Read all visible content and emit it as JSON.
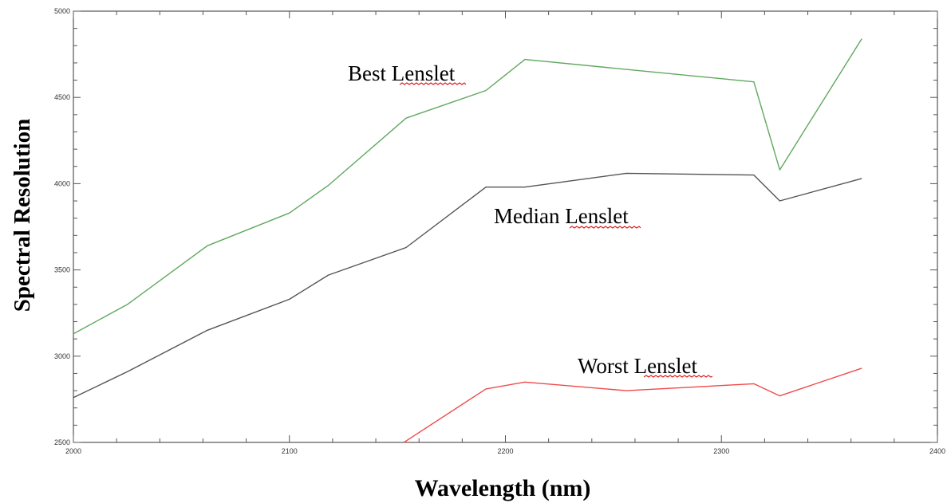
{
  "chart_data": {
    "type": "line",
    "xlabel": "Wavelength (nm)",
    "ylabel": "Spectral Resolution",
    "xlim": [
      2000,
      2400
    ],
    "ylim": [
      2500,
      5000
    ],
    "x_ticks": [
      "2000",
      "2100",
      "2200",
      "2300",
      "2400"
    ],
    "y_ticks": [
      "2500",
      "3000",
      "3500",
      "4000",
      "4500",
      "5000"
    ],
    "grid": false,
    "series": [
      {
        "name": "Best Lenslet",
        "color": "#5fa85f",
        "x": [
          2000,
          2025,
          2062,
          2100,
          2118,
          2154,
          2191,
          2209,
          2315,
          2327,
          2365
        ],
        "y": [
          3130,
          3300,
          3640,
          3830,
          3990,
          4380,
          4540,
          4720,
          4590,
          4080,
          4840
        ]
      },
      {
        "name": "Median Lenslet",
        "color": "#555555",
        "x": [
          2000,
          2025,
          2062,
          2100,
          2118,
          2154,
          2191,
          2209,
          2256,
          2315,
          2327,
          2365
        ],
        "y": [
          2760,
          2910,
          3150,
          3330,
          3470,
          3630,
          3980,
          3980,
          4060,
          4050,
          3900,
          4030
        ]
      },
      {
        "name": "Worst Lenslet",
        "color": "#ef4a4a",
        "x": [
          2153,
          2191,
          2209,
          2256,
          2315,
          2327,
          2365
        ],
        "y": [
          2500,
          2810,
          2850,
          2800,
          2840,
          2770,
          2930
        ]
      }
    ],
    "annotations": [
      "Best Lenslet",
      "Median Lenslet",
      "Worst Lenslet"
    ]
  }
}
